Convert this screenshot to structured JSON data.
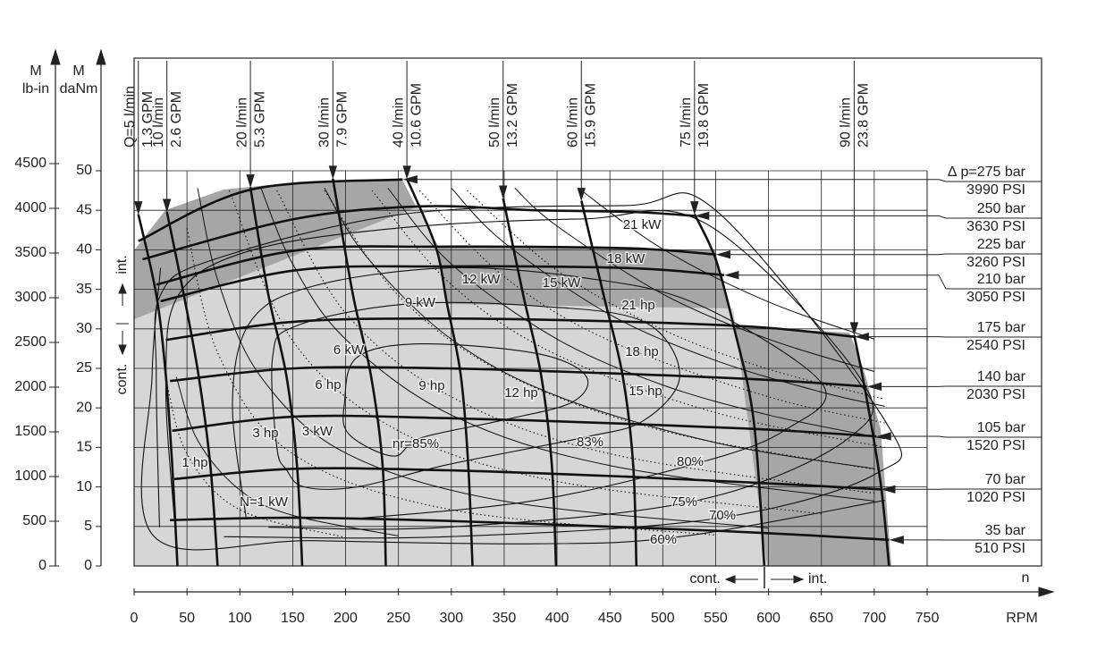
{
  "chart_data": {
    "type": "performance-map",
    "y_title": "M",
    "y_unit": "daNm",
    "y2_title": "M",
    "y2_unit": "lb-in",
    "x_title": "n",
    "x_unit": "RPM",
    "xlim": [
      0,
      750
    ],
    "xticks": [
      0,
      50,
      100,
      150,
      200,
      250,
      300,
      350,
      400,
      450,
      500,
      550,
      600,
      650,
      700,
      750
    ],
    "ylim": [
      0,
      50
    ],
    "yticks": [
      0,
      5,
      10,
      15,
      20,
      25,
      30,
      35,
      40,
      45,
      50
    ],
    "y2lim": [
      0,
      4500
    ],
    "y2ticks": [
      0,
      500,
      1000,
      1500,
      2000,
      2500,
      3000,
      3500,
      4000,
      4500
    ],
    "grid": true,
    "left_int": "int.",
    "left_cont": "cont.",
    "bottom_cont": "cont.",
    "bottom_int": "int.",
    "pressure_curves": [
      {
        "name": "∆ p=275 bar",
        "psi": "3990 PSI",
        "x": [
          4,
          110,
          254
        ],
        "values": [
          41.1,
          47.6,
          48.9
        ]
      },
      {
        "name": "250 bar",
        "psi": "3630 PSI",
        "x": [
          8,
          152,
          271,
          380,
          470,
          530
        ],
        "values": [
          38.8,
          43.9,
          45.5,
          45.0,
          44.8,
          44.3
        ]
      },
      {
        "name": "225 bar",
        "psi": "3260 PSI",
        "x": [
          21,
          152,
          287,
          465,
          550
        ],
        "values": [
          35.6,
          39.9,
          40.4,
          40.2,
          39.4
        ]
      },
      {
        "name": "210 bar",
        "psi": "3050 PSI",
        "x": [
          25,
          152,
          287,
          465,
          558
        ],
        "values": [
          33.5,
          37.4,
          37.9,
          37.7,
          36.8
        ]
      },
      {
        "name": "175 bar",
        "psi": "2540 PSI",
        "x": [
          30,
          152,
          296,
          465,
          592,
          681
        ],
        "values": [
          28.6,
          30.9,
          31.3,
          30.9,
          30.2,
          29.0
        ]
      },
      {
        "name": "140 bar",
        "psi": "2030 PSI",
        "x": [
          34,
          152,
          296,
          465,
          592,
          693
        ],
        "values": [
          23.4,
          25.0,
          25.0,
          24.3,
          23.6,
          22.7
        ]
      },
      {
        "name": "105 bar",
        "psi": "1520 PSI",
        "x": [
          36,
          152,
          296,
          465,
          592,
          702
        ],
        "values": [
          17.1,
          18.9,
          18.7,
          18.0,
          17.3,
          16.4
        ]
      },
      {
        "name": "70 bar",
        "psi": "1020 PSI",
        "x": [
          38,
          152,
          296,
          465,
          592,
          706
        ],
        "values": [
          11.0,
          12.3,
          12.1,
          11.3,
          10.5,
          9.7
        ]
      },
      {
        "name": "35 bar",
        "psi": "510 PSI",
        "x": [
          34,
          152,
          296,
          465,
          592,
          714
        ],
        "values": [
          5.8,
          6.1,
          5.7,
          4.9,
          4.2,
          3.3
        ]
      }
    ],
    "flow_curves": [
      {
        "name": "Q=5 l/min",
        "gpm": "1.3 GPM",
        "x": [
          4,
          21,
          30,
          36,
          41
        ],
        "values": [
          44.5,
          34.3,
          24.1,
          12.8,
          0
        ]
      },
      {
        "name": "10 l/min",
        "gpm": "2.6 GPM",
        "x": [
          31,
          47,
          61,
          72,
          79
        ],
        "values": [
          44.8,
          34.3,
          24.1,
          12.8,
          0
        ]
      },
      {
        "name": "20 l/min",
        "gpm": "5.3 GPM",
        "x": [
          110,
          127,
          144,
          154,
          159
        ],
        "values": [
          47.9,
          34.3,
          24.1,
          12.8,
          0
        ]
      },
      {
        "name": "30 l/min",
        "gpm": "7.9 GPM",
        "x": [
          188,
          207,
          224,
          235,
          238
        ],
        "values": [
          49.0,
          34.3,
          24.1,
          12.8,
          0
        ]
      },
      {
        "name": "40 l/min",
        "gpm": "10.6 GPM",
        "x": [
          258,
          285,
          296,
          309,
          316,
          320
        ],
        "values": [
          49.0,
          40.5,
          33.1,
          24.1,
          12.8,
          0
        ]
      },
      {
        "name": "50 l/min",
        "gpm": "13.2 GPM",
        "x": [
          349,
          368,
          385,
          395,
          399
        ],
        "values": [
          46.5,
          34.3,
          24.1,
          12.8,
          0
        ]
      },
      {
        "name": "60 l/min",
        "gpm": "15.9 GPM",
        "x": [
          423,
          444,
          462,
          472,
          475
        ],
        "values": [
          46.2,
          34.3,
          24.1,
          12.8,
          0
        ]
      },
      {
        "name": "75 l/min",
        "gpm": "19.8 GPM",
        "x": [
          530,
          550,
          568,
          586,
          596
        ],
        "values": [
          44.5,
          38.8,
          29.8,
          18.4,
          0
        ]
      },
      {
        "name": "90 l/min",
        "gpm": "23.8 GPM",
        "x": [
          681,
          692,
          706,
          714
        ],
        "values": [
          29.2,
          21.8,
          10.5,
          0
        ]
      }
    ],
    "power_kw": [
      {
        "name": "N=1 kW",
        "x": [
          40,
          60,
          100,
          150,
          250
        ],
        "values": [
          23.9,
          15.9,
          9.6,
          6.4,
          3.8
        ]
      },
      {
        "name": "3 kW",
        "x": [
          60,
          80,
          120,
          200,
          350,
          600
        ],
        "values": [
          47.8,
          35.8,
          23.9,
          14.3,
          8.2,
          4.8
        ]
      },
      {
        "name": "6 kW",
        "x": [
          120,
          150,
          200,
          300,
          450,
          700
        ],
        "values": [
          47.8,
          38.2,
          28.7,
          19.1,
          12.7,
          8.2
        ]
      },
      {
        "name": "9 kW",
        "x": [
          180,
          220,
          300,
          400,
          550,
          700
        ],
        "values": [
          47.8,
          39.1,
          28.7,
          21.5,
          15.6,
          12.3
        ]
      },
      {
        "name": "12 kW",
        "x": [
          240,
          300,
          400,
          500,
          600,
          710
        ],
        "values": [
          47.8,
          38.2,
          28.7,
          22.9,
          19.1,
          16.1
        ]
      },
      {
        "name": "15 kW",
        "x": [
          300,
          350,
          450,
          550,
          650,
          710
        ],
        "values": [
          47.8,
          40.9,
          31.8,
          26.0,
          22.0,
          20.2
        ]
      },
      {
        "name": "18 kW",
        "x": [
          360,
          400,
          500,
          600,
          700
        ],
        "values": [
          47.8,
          43.0,
          34.4,
          28.7,
          24.6
        ]
      },
      {
        "name": "21 kW",
        "x": [
          420,
          500,
          600,
          700
        ],
        "values": [
          47.8,
          40.1,
          33.4,
          28.7
        ]
      }
    ],
    "power_hp": [
      {
        "name": "1 hp",
        "x": [
          30,
          50,
          100,
          200
        ],
        "values": [
          23.7,
          14.2,
          7.1,
          3.6
        ]
      },
      {
        "name": "3 hp",
        "x": [
          50,
          80,
          150,
          300,
          550
        ],
        "values": [
          42.7,
          26.7,
          14.2,
          7.1,
          3.9
        ]
      },
      {
        "name": "6 hp",
        "x": [
          90,
          150,
          250,
          400,
          650
        ],
        "values": [
          47.5,
          28.5,
          17.1,
          10.7,
          6.6
        ]
      },
      {
        "name": "9 hp",
        "x": [
          135,
          200,
          300,
          450,
          700
        ],
        "values": [
          47.5,
          32.0,
          21.4,
          14.2,
          9.2
        ]
      },
      {
        "name": "12 hp",
        "x": [
          180,
          250,
          350,
          500,
          710
        ],
        "values": [
          47.5,
          34.2,
          24.4,
          17.1,
          12.0
        ]
      },
      {
        "name": "15 hp",
        "x": [
          225,
          300,
          400,
          550,
          710
        ],
        "values": [
          47.5,
          35.6,
          26.7,
          19.4,
          15.0
        ]
      },
      {
        "name": "18 hp",
        "x": [
          270,
          350,
          450,
          600,
          710
        ],
        "values": [
          47.5,
          36.6,
          28.5,
          21.4,
          18.1
        ]
      },
      {
        "name": "21 hp",
        "x": [
          315,
          400,
          500,
          600,
          710
        ],
        "values": [
          47.5,
          37.4,
          29.9,
          24.9,
          21.1
        ]
      }
    ],
    "efficiency": [
      {
        "name": "ηr=85%",
        "closed": true,
        "x": [
          199,
          211,
          271,
          380,
          427,
          414,
          347,
          271,
          245,
          203
        ],
        "values": [
          20.7,
          26.4,
          28.1,
          26.9,
          24.1,
          20.7,
          18.4,
          16.2,
          13.9,
          16.7
        ]
      },
      {
        "name": "83%",
        "closed": true,
        "x": [
          135,
          131,
          152,
          254,
          380,
          482,
          516,
          482,
          423,
          296,
          211,
          161,
          144
        ],
        "values": [
          15.0,
          26.4,
          30.3,
          33.1,
          32.9,
          30.9,
          24.1,
          18.4,
          16.2,
          12.8,
          10.0,
          10.0,
          12.2
        ]
      },
      {
        "name": "80%",
        "closed": false,
        "x": [
          106,
          93,
          110,
          169,
          296,
          423,
          533,
          651,
          617,
          541,
          380,
          211
        ],
        "values": [
          6.0,
          20.7,
          30.9,
          35.4,
          37.7,
          36.5,
          33.1,
          23.0,
          17.3,
          13.3,
          8.3,
          6.0
        ]
      },
      {
        "name": "75%",
        "closed": false,
        "x": [
          38,
          30,
          42,
          110,
          254,
          423,
          541,
          685,
          676,
          533,
          296,
          127
        ],
        "values": [
          6.0,
          23.0,
          34.3,
          39.9,
          42.8,
          43.9,
          43.3,
          24.1,
          16.2,
          8.3,
          4.9,
          4.9
        ]
      },
      {
        "name": "70%",
        "closed": false,
        "x": [
          24,
          21,
          25,
          76,
          254,
          465,
          550,
          710,
          702,
          550,
          296,
          85
        ],
        "values": [
          4.9,
          24.1,
          34.3,
          38.8,
          44.5,
          45.6,
          45.0,
          18.4,
          11.7,
          6.0,
          3.7,
          3.7
        ]
      },
      {
        "name": "60%",
        "closed": false,
        "x": [
          25,
          17,
          19,
          169,
          380,
          516,
          710
        ],
        "values": [
          37.7,
          24.1,
          3.7,
          3.2,
          2.8,
          3.7,
          8.3
        ]
      }
    ]
  }
}
